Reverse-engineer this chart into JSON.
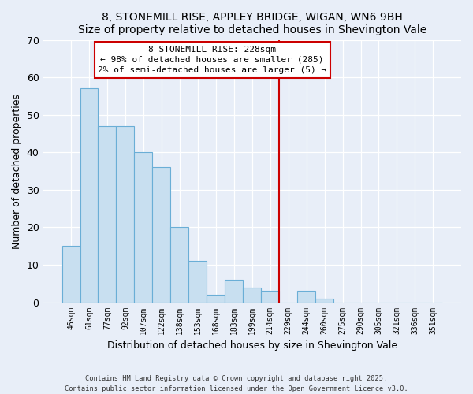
{
  "title": "8, STONEMILL RISE, APPLEY BRIDGE, WIGAN, WN6 9BH",
  "subtitle": "Size of property relative to detached houses in Shevington Vale",
  "xlabel": "Distribution of detached houses by size in Shevington Vale",
  "ylabel": "Number of detached properties",
  "bar_labels": [
    "46sqm",
    "61sqm",
    "77sqm",
    "92sqm",
    "107sqm",
    "122sqm",
    "138sqm",
    "153sqm",
    "168sqm",
    "183sqm",
    "199sqm",
    "214sqm",
    "229sqm",
    "244sqm",
    "260sqm",
    "275sqm",
    "290sqm",
    "305sqm",
    "321sqm",
    "336sqm",
    "351sqm"
  ],
  "bar_values": [
    15,
    57,
    47,
    47,
    40,
    36,
    20,
    11,
    2,
    6,
    4,
    3,
    0,
    3,
    1,
    0,
    0,
    0,
    0,
    0,
    0
  ],
  "bar_color": "#c8dff0",
  "bar_edge_color": "#6aaed6",
  "vline_color": "#cc0000",
  "ylim": [
    0,
    70
  ],
  "yticks": [
    0,
    10,
    20,
    30,
    40,
    50,
    60,
    70
  ],
  "annotation_text": "8 STONEMILL RISE: 228sqm\n← 98% of detached houses are smaller (285)\n2% of semi-detached houses are larger (5) →",
  "annotation_box_edge": "#cc0000",
  "bg_color": "#e8eef8",
  "grid_color": "#ffffff",
  "footer_line1": "Contains HM Land Registry data © Crown copyright and database right 2025.",
  "footer_line2": "Contains public sector information licensed under the Open Government Licence v3.0."
}
